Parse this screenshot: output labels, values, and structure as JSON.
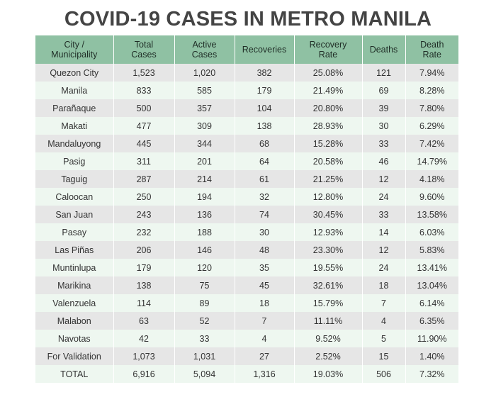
{
  "title": "COVID-19 CASES IN METRO MANILA",
  "chart_data": {
    "type": "table",
    "title": "COVID-19 CASES IN METRO MANILA",
    "columns": [
      "City /\nMunicipality",
      "Total\nCases",
      "Active\nCases",
      "Recoveries",
      "Recovery\nRate",
      "Deaths",
      "Death\nRate"
    ],
    "rows": [
      [
        "Quezon City",
        "1,523",
        "1,020",
        "382",
        "25.08%",
        "121",
        "7.94%"
      ],
      [
        "Manila",
        "833",
        "585",
        "179",
        "21.49%",
        "69",
        "8.28%"
      ],
      [
        "Parañaque",
        "500",
        "357",
        "104",
        "20.80%",
        "39",
        "7.80%"
      ],
      [
        "Makati",
        "477",
        "309",
        "138",
        "28.93%",
        "30",
        "6.29%"
      ],
      [
        "Mandaluyong",
        "445",
        "344",
        "68",
        "15.28%",
        "33",
        "7.42%"
      ],
      [
        "Pasig",
        "311",
        "201",
        "64",
        "20.58%",
        "46",
        "14.79%"
      ],
      [
        "Taguig",
        "287",
        "214",
        "61",
        "21.25%",
        "12",
        "4.18%"
      ],
      [
        "Caloocan",
        "250",
        "194",
        "32",
        "12.80%",
        "24",
        "9.60%"
      ],
      [
        "San Juan",
        "243",
        "136",
        "74",
        "30.45%",
        "33",
        "13.58%"
      ],
      [
        "Pasay",
        "232",
        "188",
        "30",
        "12.93%",
        "14",
        "6.03%"
      ],
      [
        "Las Piñas",
        "206",
        "146",
        "48",
        "23.30%",
        "12",
        "5.83%"
      ],
      [
        "Muntinlupa",
        "179",
        "120",
        "35",
        "19.55%",
        "24",
        "13.41%"
      ],
      [
        "Marikina",
        "138",
        "75",
        "45",
        "32.61%",
        "18",
        "13.04%"
      ],
      [
        "Valenzuela",
        "114",
        "89",
        "18",
        "15.79%",
        "7",
        "6.14%"
      ],
      [
        "Malabon",
        "63",
        "52",
        "7",
        "11.11%",
        "4",
        "6.35%"
      ],
      [
        "Navotas",
        "42",
        "33",
        "4",
        "9.52%",
        "5",
        "11.90%"
      ],
      [
        "For Validation",
        "1,073",
        "1,031",
        "27",
        "2.52%",
        "15",
        "1.40%"
      ],
      [
        "TOTAL",
        "6,916",
        "5,094",
        "1,316",
        "19.03%",
        "506",
        "7.32%"
      ]
    ]
  },
  "colors": {
    "header_bg": "#8fc1a3",
    "row_gray": "#e6e6e6",
    "row_green": "#eef7f0",
    "title": "#444444"
  }
}
